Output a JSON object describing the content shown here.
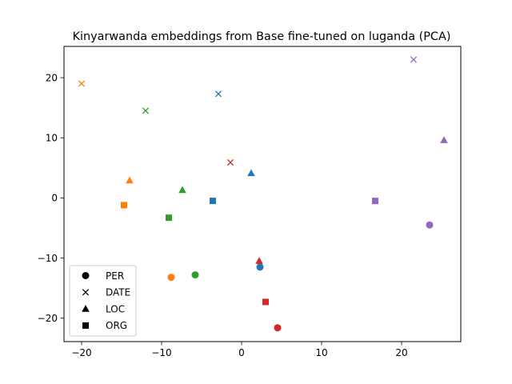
{
  "chart_data": {
    "type": "scatter",
    "title": "Kinyarwanda embeddings from Base fine-tuned on luganda (PCA)",
    "xlabel": "",
    "ylabel": "",
    "xlim": [
      -22.2,
      27.4
    ],
    "ylim": [
      -23.9,
      25.2
    ],
    "xticks": [
      -20,
      -10,
      0,
      10,
      20
    ],
    "yticks": [
      -20,
      -10,
      0,
      10,
      20
    ],
    "grid": false,
    "legend_position": "lower-left",
    "legend": [
      {
        "label": "PER",
        "marker": "circle"
      },
      {
        "label": "DATE",
        "marker": "x"
      },
      {
        "label": "LOC",
        "marker": "triangle"
      },
      {
        "label": "ORG",
        "marker": "square"
      }
    ],
    "colors": {
      "blue": "#1f77b4",
      "orange": "#ff7f0e",
      "green": "#2ca02c",
      "red": "#d62728",
      "purple": "#9467bd"
    },
    "series": [
      {
        "color": "blue",
        "points": [
          {
            "category": "PER",
            "x": 2.3,
            "y": -11.5
          },
          {
            "category": "DATE",
            "x": -2.9,
            "y": 17.3
          },
          {
            "category": "LOC",
            "x": 1.2,
            "y": 4.1
          },
          {
            "category": "ORG",
            "x": -3.6,
            "y": -0.5
          }
        ]
      },
      {
        "color": "orange",
        "points": [
          {
            "category": "PER",
            "x": -8.8,
            "y": -13.2
          },
          {
            "category": "DATE",
            "x": -20.0,
            "y": 19.0
          },
          {
            "category": "LOC",
            "x": -14.0,
            "y": 2.9
          },
          {
            "category": "ORG",
            "x": -14.7,
            "y": -1.2
          }
        ]
      },
      {
        "color": "green",
        "points": [
          {
            "category": "PER",
            "x": -5.8,
            "y": -12.8
          },
          {
            "category": "DATE",
            "x": -12.0,
            "y": 14.5
          },
          {
            "category": "LOC",
            "x": -7.4,
            "y": 1.3
          },
          {
            "category": "ORG",
            "x": -9.1,
            "y": -3.3
          }
        ]
      },
      {
        "color": "red",
        "points": [
          {
            "category": "PER",
            "x": 4.5,
            "y": -21.6
          },
          {
            "category": "DATE",
            "x": -1.4,
            "y": 5.9
          },
          {
            "category": "LOC",
            "x": 2.2,
            "y": -10.5
          },
          {
            "category": "ORG",
            "x": 3.0,
            "y": -17.3
          }
        ]
      },
      {
        "color": "purple",
        "points": [
          {
            "category": "PER",
            "x": 23.5,
            "y": -4.5
          },
          {
            "category": "DATE",
            "x": 21.5,
            "y": 23.0
          },
          {
            "category": "LOC",
            "x": 25.3,
            "y": 9.6
          },
          {
            "category": "ORG",
            "x": 16.7,
            "y": -0.5
          }
        ]
      }
    ]
  }
}
